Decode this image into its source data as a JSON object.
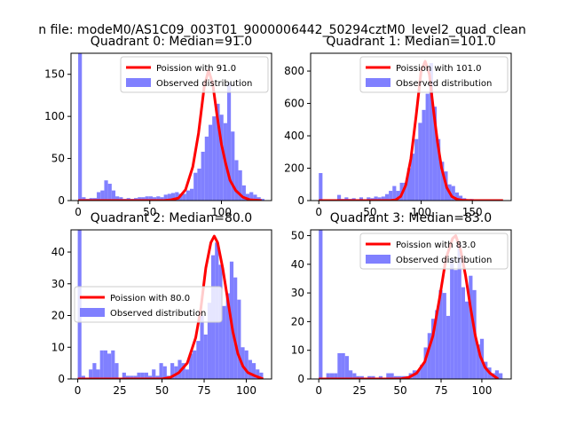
{
  "figure": {
    "suptitle": "n file: modeM0/AS1C09_003T01_9000006442_50294cztM0_level2_quad_clean"
  },
  "colors": {
    "hist": "#8080ff",
    "fit": "#ff0000",
    "axis": "#000000"
  },
  "chart_data": [
    {
      "type": "bar",
      "title": "Quadrant 0: Median=91.0",
      "legend_position": "upper-right",
      "legend": {
        "fit": "Poission with 91.0",
        "hist": "Observed distribution"
      },
      "xlim": [
        -5,
        135
      ],
      "ylim": [
        0,
        175
      ],
      "xticks": [
        {
          "v": 0,
          "label": "0"
        },
        {
          "v": 50,
          "label": "50"
        },
        {
          "v": 100,
          "label": "100"
        }
      ],
      "yticks": [
        {
          "v": 0,
          "label": "0"
        },
        {
          "v": 50,
          "label": "50"
        },
        {
          "v": 100,
          "label": "100"
        },
        {
          "v": 150,
          "label": "150"
        }
      ],
      "bin_width": 2.6,
      "hist": [
        [
          0,
          175
        ],
        [
          2.6,
          4
        ],
        [
          5.2,
          2
        ],
        [
          7.8,
          3
        ],
        [
          10.4,
          3
        ],
        [
          13,
          10
        ],
        [
          15.6,
          12
        ],
        [
          18.2,
          24
        ],
        [
          20.8,
          20
        ],
        [
          23.4,
          12
        ],
        [
          26,
          5
        ],
        [
          28.6,
          4
        ],
        [
          31.2,
          2
        ],
        [
          33.8,
          3
        ],
        [
          36.4,
          2
        ],
        [
          39,
          3
        ],
        [
          41.6,
          4
        ],
        [
          44.2,
          4
        ],
        [
          46.8,
          5
        ],
        [
          49.4,
          5
        ],
        [
          52,
          4
        ],
        [
          54.6,
          5
        ],
        [
          57.2,
          4
        ],
        [
          59.8,
          7
        ],
        [
          62.4,
          8
        ],
        [
          65,
          9
        ],
        [
          67.6,
          10
        ],
        [
          70.2,
          8
        ],
        [
          72.8,
          8
        ],
        [
          75.4,
          12
        ],
        [
          78,
          14
        ],
        [
          80.6,
          33
        ],
        [
          83.2,
          38
        ],
        [
          85.8,
          58
        ],
        [
          88.4,
          76
        ],
        [
          91,
          90
        ],
        [
          93.6,
          100
        ],
        [
          96.2,
          115
        ],
        [
          98.8,
          102
        ],
        [
          101.4,
          92
        ],
        [
          104,
          140
        ],
        [
          106.6,
          82
        ],
        [
          109.2,
          48
        ],
        [
          111.8,
          36
        ],
        [
          114.4,
          18
        ],
        [
          117,
          8
        ],
        [
          119.6,
          10
        ],
        [
          122.2,
          7
        ],
        [
          124.8,
          4
        ],
        [
          127.4,
          2
        ]
      ],
      "fit": [
        [
          0,
          0
        ],
        [
          60,
          0
        ],
        [
          65,
          1
        ],
        [
          70,
          3
        ],
        [
          75,
          13
        ],
        [
          80,
          40
        ],
        [
          84,
          80
        ],
        [
          88,
          135
        ],
        [
          91,
          155
        ],
        [
          94,
          138
        ],
        [
          97,
          100
        ],
        [
          100,
          67
        ],
        [
          103,
          44
        ],
        [
          106,
          24
        ],
        [
          110,
          12
        ],
        [
          115,
          4
        ],
        [
          120,
          1
        ],
        [
          128,
          0
        ]
      ]
    },
    {
      "type": "bar",
      "title": "Quadrant 1: Median=101.0",
      "legend_position": "upper-right",
      "legend": {
        "fit": "Poission with 101.0",
        "hist": "Observed distribution"
      },
      "xlim": [
        -8,
        188
      ],
      "ylim": [
        0,
        910
      ],
      "xticks": [
        {
          "v": 0,
          "label": "0"
        },
        {
          "v": 50,
          "label": "50"
        },
        {
          "v": 100,
          "label": "100"
        },
        {
          "v": 150,
          "label": "150"
        }
      ],
      "yticks": [
        {
          "v": 0,
          "label": "0"
        },
        {
          "v": 200,
          "label": "200"
        },
        {
          "v": 400,
          "label": "400"
        },
        {
          "v": 600,
          "label": "600"
        },
        {
          "v": 800,
          "label": "800"
        }
      ],
      "bin_width": 3.6,
      "hist": [
        [
          0,
          170
        ],
        [
          3.6,
          0
        ],
        [
          7.2,
          5
        ],
        [
          10.8,
          5
        ],
        [
          14.4,
          0
        ],
        [
          18,
          35
        ],
        [
          21.6,
          10
        ],
        [
          25.2,
          20
        ],
        [
          28.8,
          10
        ],
        [
          32.4,
          15
        ],
        [
          36,
          5
        ],
        [
          39.6,
          20
        ],
        [
          43.2,
          5
        ],
        [
          46.8,
          20
        ],
        [
          50.4,
          15
        ],
        [
          54,
          25
        ],
        [
          57.6,
          20
        ],
        [
          61.2,
          25
        ],
        [
          64.8,
          40
        ],
        [
          68.4,
          60
        ],
        [
          72,
          90
        ],
        [
          75.6,
          60
        ],
        [
          79.2,
          110
        ],
        [
          82.8,
          110
        ],
        [
          86.4,
          200
        ],
        [
          90,
          290
        ],
        [
          93.6,
          380
        ],
        [
          97.2,
          480
        ],
        [
          100.8,
          560
        ],
        [
          104.4,
          660
        ],
        [
          108,
          850
        ],
        [
          111.6,
          580
        ],
        [
          115.2,
          380
        ],
        [
          118.8,
          240
        ],
        [
          122.4,
          180
        ],
        [
          126,
          100
        ],
        [
          129.6,
          90
        ],
        [
          133.2,
          50
        ],
        [
          136.8,
          30
        ],
        [
          140.4,
          15
        ],
        [
          144,
          5
        ],
        [
          147.6,
          10
        ],
        [
          151.2,
          2
        ],
        [
          154.8,
          5
        ],
        [
          158.4,
          0
        ]
      ],
      "fit": [
        [
          0,
          0
        ],
        [
          70,
          0
        ],
        [
          75,
          4
        ],
        [
          80,
          25
        ],
        [
          85,
          95
        ],
        [
          90,
          260
        ],
        [
          95,
          520
        ],
        [
          100,
          800
        ],
        [
          104,
          860
        ],
        [
          108,
          780
        ],
        [
          112,
          560
        ],
        [
          116,
          360
        ],
        [
          120,
          200
        ],
        [
          125,
          80
        ],
        [
          130,
          25
        ],
        [
          135,
          8
        ],
        [
          140,
          2
        ],
        [
          150,
          0
        ],
        [
          180,
          0
        ]
      ]
    },
    {
      "type": "bar",
      "title": "Quadrant 2: Median=80.0",
      "legend_position": "center-left",
      "legend": {
        "fit": "Poission with 80.0",
        "hist": "Observed distribution"
      },
      "xlim": [
        -4,
        115
      ],
      "ylim": [
        0,
        47
      ],
      "xticks": [
        {
          "v": 0,
          "label": "0"
        },
        {
          "v": 25,
          "label": "25"
        },
        {
          "v": 50,
          "label": "50"
        },
        {
          "v": 75,
          "label": "75"
        },
        {
          "v": 100,
          "label": "100"
        }
      ],
      "yticks": [
        {
          "v": 0,
          "label": "0"
        },
        {
          "v": 10,
          "label": "10"
        },
        {
          "v": 20,
          "label": "20"
        },
        {
          "v": 30,
          "label": "30"
        },
        {
          "v": 40,
          "label": "40"
        }
      ],
      "bin_width": 2.2,
      "hist": [
        [
          0,
          47
        ],
        [
          2.2,
          1
        ],
        [
          4.4,
          0
        ],
        [
          6.6,
          3
        ],
        [
          8.8,
          5
        ],
        [
          11,
          3
        ],
        [
          13.2,
          9
        ],
        [
          15.4,
          9
        ],
        [
          17.6,
          8
        ],
        [
          19.8,
          9
        ],
        [
          22,
          5
        ],
        [
          24.2,
          0
        ],
        [
          26.4,
          2
        ],
        [
          28.6,
          1
        ],
        [
          30.8,
          1
        ],
        [
          33,
          1
        ],
        [
          35.2,
          2
        ],
        [
          37.4,
          2
        ],
        [
          39.6,
          2
        ],
        [
          41.8,
          1
        ],
        [
          44,
          3
        ],
        [
          46.2,
          1
        ],
        [
          48.4,
          5
        ],
        [
          50.6,
          4
        ],
        [
          52.8,
          1
        ],
        [
          55,
          5
        ],
        [
          57.2,
          4
        ],
        [
          59.4,
          6
        ],
        [
          61.6,
          5
        ],
        [
          63.8,
          3
        ],
        [
          66,
          8
        ],
        [
          68.2,
          9
        ],
        [
          70.4,
          12
        ],
        [
          72.6,
          20
        ],
        [
          74.8,
          14
        ],
        [
          77,
          24
        ],
        [
          79.2,
          39
        ],
        [
          81.4,
          43
        ],
        [
          83.6,
          36
        ],
        [
          85.8,
          23
        ],
        [
          88,
          27
        ],
        [
          90.2,
          37
        ],
        [
          92.4,
          32
        ],
        [
          94.6,
          25
        ],
        [
          96.8,
          10
        ],
        [
          99,
          9
        ],
        [
          101.2,
          6
        ],
        [
          103.4,
          5
        ],
        [
          105.6,
          3
        ],
        [
          107.8,
          2
        ]
      ],
      "fit": [
        [
          0,
          0
        ],
        [
          50,
          0
        ],
        [
          55,
          0.5
        ],
        [
          60,
          2
        ],
        [
          65,
          5
        ],
        [
          70,
          13
        ],
        [
          73,
          22
        ],
        [
          76,
          35
        ],
        [
          79,
          43
        ],
        [
          81,
          45
        ],
        [
          83,
          43
        ],
        [
          86,
          35
        ],
        [
          89,
          25
        ],
        [
          92,
          15
        ],
        [
          95,
          8
        ],
        [
          98,
          4
        ],
        [
          101,
          2
        ],
        [
          105,
          1
        ],
        [
          110,
          0
        ]
      ]
    },
    {
      "type": "bar",
      "title": "Quadrant 3: Median=83.0",
      "legend_position": "upper-right",
      "legend": {
        "fit": "Poission with 83.0",
        "hist": "Observed distribution"
      },
      "xlim": [
        -5,
        118
      ],
      "ylim": [
        0,
        52
      ],
      "xticks": [
        {
          "v": 0,
          "label": "0"
        },
        {
          "v": 25,
          "label": "25"
        },
        {
          "v": 50,
          "label": "50"
        },
        {
          "v": 75,
          "label": "75"
        },
        {
          "v": 100,
          "label": "100"
        }
      ],
      "yticks": [
        {
          "v": 0,
          "label": "0"
        },
        {
          "v": 10,
          "label": "10"
        },
        {
          "v": 20,
          "label": "20"
        },
        {
          "v": 30,
          "label": "30"
        },
        {
          "v": 40,
          "label": "40"
        },
        {
          "v": 50,
          "label": "50"
        }
      ],
      "bin_width": 2.3,
      "hist": [
        [
          0,
          52
        ],
        [
          2.3,
          0
        ],
        [
          4.6,
          2
        ],
        [
          6.9,
          2
        ],
        [
          9.2,
          2
        ],
        [
          11.5,
          9
        ],
        [
          13.8,
          9
        ],
        [
          16.1,
          8
        ],
        [
          18.4,
          3
        ],
        [
          20.7,
          2
        ],
        [
          23,
          1
        ],
        [
          25.3,
          1
        ],
        [
          27.6,
          0
        ],
        [
          29.9,
          1
        ],
        [
          32.2,
          1
        ],
        [
          34.5,
          0
        ],
        [
          36.8,
          1
        ],
        [
          39.1,
          0
        ],
        [
          41.4,
          2
        ],
        [
          43.7,
          2
        ],
        [
          46,
          1
        ],
        [
          48.3,
          1
        ],
        [
          50.6,
          1
        ],
        [
          52.9,
          1
        ],
        [
          55.2,
          2
        ],
        [
          57.5,
          3
        ],
        [
          59.8,
          3
        ],
        [
          62.1,
          5
        ],
        [
          64.4,
          11
        ],
        [
          66.7,
          16
        ],
        [
          69,
          21
        ],
        [
          71.3,
          24
        ],
        [
          73.6,
          31
        ],
        [
          75.9,
          30
        ],
        [
          78.2,
          22
        ],
        [
          80.5,
          42
        ],
        [
          82.8,
          38
        ],
        [
          85.1,
          47
        ],
        [
          87.4,
          32
        ],
        [
          89.7,
          27
        ],
        [
          92,
          36
        ],
        [
          94.3,
          31
        ],
        [
          96.6,
          12
        ],
        [
          98.9,
          14
        ],
        [
          101.2,
          6
        ],
        [
          103.5,
          4
        ],
        [
          105.8,
          2
        ],
        [
          108.1,
          3
        ],
        [
          110.4,
          2
        ]
      ],
      "fit": [
        [
          0,
          0
        ],
        [
          50,
          0
        ],
        [
          55,
          0.5
        ],
        [
          60,
          2
        ],
        [
          65,
          6
        ],
        [
          70,
          15
        ],
        [
          74,
          28
        ],
        [
          78,
          42
        ],
        [
          82,
          49
        ],
        [
          84,
          50
        ],
        [
          87,
          45
        ],
        [
          90,
          36
        ],
        [
          93,
          25
        ],
        [
          96,
          15
        ],
        [
          99,
          8
        ],
        [
          102,
          4
        ],
        [
          105,
          2
        ],
        [
          110,
          0
        ]
      ]
    }
  ]
}
